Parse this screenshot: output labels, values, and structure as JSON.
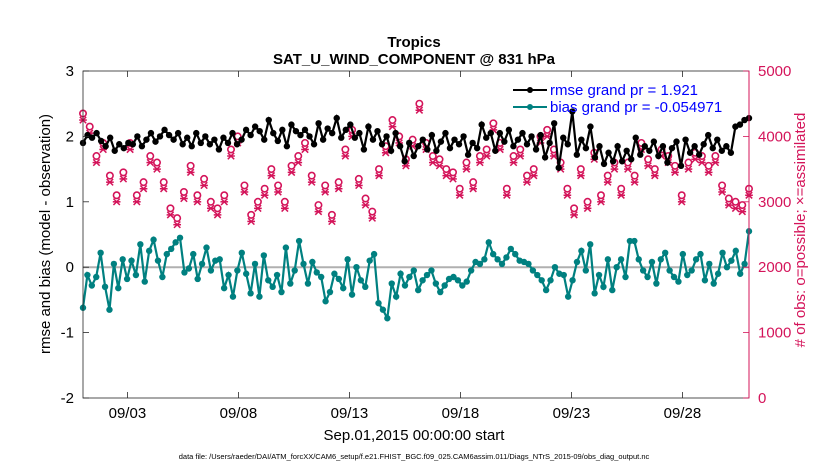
{
  "chart_data": {
    "type": "line",
    "title": "Tropics",
    "subtitle": "SAT_U_WIND_COMPONENT @ 831 hPa",
    "xlabel": "Sep.01,2015 00:00:00 start",
    "ylabel_left": "rmse and bias (model - observation)",
    "ylabel_right": "# of obs: o=possible; ×=assimilated",
    "xlim": [
      1.0,
      31.0
    ],
    "ylim_left": [
      -2,
      3
    ],
    "ylim_right": [
      0,
      5000
    ],
    "x_ticks": [
      3,
      8,
      13,
      18,
      23,
      28
    ],
    "x_tick_labels": [
      "09/03",
      "09/08",
      "09/13",
      "09/18",
      "09/23",
      "09/28"
    ],
    "y_left_ticks": [
      -2,
      -1,
      0,
      1,
      2,
      3
    ],
    "y_left_tick_labels": [
      "-2",
      "-1",
      "0",
      "1",
      "2",
      "3"
    ],
    "y_right_ticks": [
      0,
      1000,
      2000,
      3000,
      4000,
      5000
    ],
    "y_right_tick_labels": [
      "0",
      "1000",
      "2000",
      "3000",
      "4000",
      "5000"
    ],
    "footnote": "data file: /Users/raeder/DAI/ATM_forcXX/CAM6_setup/f.e21.FHIST_BGC.f09_025.CAM6assim.011/Diags_NTrS_2015-09/obs_diag_output.nc",
    "legend": [
      {
        "label": "rmse grand pr = 1.921",
        "color": "#000000"
      },
      {
        "label": "bias grand pr = -0.054971",
        "color": "#008080"
      }
    ],
    "series": [
      {
        "name": "rmse",
        "axis": "left",
        "color": "#000000",
        "values": [
          1.9,
          2.02,
          1.98,
          2.05,
          1.93,
          1.85,
          1.98,
          1.78,
          1.88,
          1.82,
          1.9,
          1.88,
          2.0,
          1.85,
          1.95,
          2.05,
          1.92,
          2.0,
          2.1,
          2.02,
          1.95,
          2.05,
          1.88,
          1.98,
          1.85,
          2.05,
          1.9,
          2.0,
          1.88,
          1.95,
          1.8,
          1.98,
          1.9,
          2.05,
          1.88,
          1.95,
          2.1,
          2.02,
          2.15,
          2.08,
          1.95,
          2.25,
          2.05,
          1.93,
          2.1,
          1.85,
          2.18,
          2.08,
          2.02,
          2.1,
          2.0,
          1.88,
          2.2,
          1.95,
          2.12,
          2.05,
          2.28,
          1.98,
          2.1,
          2.18,
          1.98,
          2.05,
          1.8,
          2.15,
          1.95,
          2.08,
          1.88,
          2.0,
          1.78,
          2.05,
          1.85,
          1.62,
          1.9,
          1.7,
          1.85,
          1.95,
          1.8,
          2.02,
          1.78,
          1.92,
          2.05,
          1.82,
          1.95,
          1.88,
          2.0,
          1.72,
          1.9,
          1.82,
          2.18,
          1.98,
          2.05,
          1.78,
          2.05,
          1.92,
          2.1,
          1.85,
          1.95,
          2.05,
          1.88,
          2.0,
          1.8,
          2.02,
          1.68,
          1.9,
          2.2,
          1.52,
          1.98,
          1.88,
          2.38,
          1.72,
          1.95,
          1.82,
          2.15,
          1.68,
          1.85,
          1.58,
          1.75,
          1.62,
          1.85,
          1.62,
          1.78,
          1.65,
          1.98,
          1.72,
          1.85,
          1.78,
          1.92,
          1.7,
          1.85,
          1.6,
          1.82,
          1.92,
          1.55,
          1.95,
          1.75,
          1.85,
          1.72,
          1.88,
          2.02,
          1.82,
          1.95,
          1.78,
          1.85,
          1.75,
          2.15,
          2.18,
          2.25,
          2.28
        ]
      },
      {
        "name": "bias",
        "axis": "left",
        "color": "#008080",
        "values": [
          -0.62,
          -0.12,
          -0.28,
          -0.15,
          0.22,
          -0.3,
          -0.65,
          0.05,
          -0.32,
          0.12,
          -0.18,
          0.1,
          -0.12,
          0.35,
          -0.22,
          0.25,
          0.42,
          0.1,
          -0.15,
          0.2,
          0.28,
          0.38,
          0.45,
          -0.08,
          -0.02,
          0.2,
          -0.18,
          0.05,
          0.3,
          -0.05,
          0.1,
          0.12,
          -0.32,
          -0.12,
          -0.45,
          -0.05,
          0.22,
          -0.1,
          -0.4,
          0.05,
          -0.45,
          0.18,
          -0.2,
          -0.3,
          -0.12,
          -0.38,
          0.3,
          -0.25,
          -0.05,
          0.4,
          0.05,
          -0.25,
          0.08,
          -0.08,
          -0.15,
          -0.52,
          -0.38,
          -0.1,
          -0.18,
          -0.32,
          0.12,
          -0.42,
          0.0,
          -0.2,
          -0.3,
          0.1,
          0.2,
          -0.55,
          -0.65,
          -0.78,
          -0.25,
          -0.45,
          -0.1,
          -0.28,
          -0.15,
          -0.05,
          -0.35,
          -0.2,
          -0.12,
          -0.05,
          -0.25,
          -0.38,
          -0.28,
          -0.18,
          -0.15,
          -0.2,
          -0.28,
          -0.22,
          -0.05,
          0.08,
          0.05,
          0.12,
          0.38,
          0.2,
          0.12,
          0.05,
          0.15,
          0.28,
          0.2,
          0.1,
          0.08,
          0.05,
          -0.05,
          -0.12,
          -0.2,
          -0.35,
          -0.2,
          0.0,
          -0.1,
          -0.12,
          -0.45,
          -0.2,
          0.08,
          0.25,
          -0.05,
          0.35,
          -0.4,
          -0.12,
          -0.3,
          0.12,
          -0.35,
          0.0,
          0.12,
          -0.15,
          0.4,
          0.4,
          0.12,
          -0.05,
          -0.15,
          0.08,
          -0.25,
          0.12,
          0.22,
          -0.05,
          -0.15,
          -0.22,
          0.2,
          -0.12,
          -0.05,
          0.12,
          0.2,
          -0.2,
          0.05,
          -0.25,
          -0.1,
          0.22,
          0.0,
          0.1,
          0.25,
          -0.1,
          0.05,
          0.55
        ]
      },
      {
        "name": "possible",
        "axis": "right",
        "color": "#d4145a",
        "values": [
          4350,
          4150,
          3700,
          3900,
          3400,
          3100,
          3450,
          3900,
          3100,
          3300,
          3700,
          3600,
          3300,
          2900,
          2750,
          3150,
          3550,
          3100,
          3350,
          3000,
          2900,
          3100,
          3800,
          4000,
          3250,
          2800,
          3000,
          3200,
          3500,
          3250,
          3000,
          3550,
          3700,
          3900,
          3400,
          2950,
          3250,
          2800,
          3300,
          3800,
          4100,
          3350,
          3050,
          2850,
          3500,
          3850,
          4250,
          4000,
          3650,
          3950,
          4500,
          3900,
          3700,
          3650,
          3500,
          3450,
          3200,
          3600,
          3300,
          3700,
          3800,
          4200,
          3900,
          3200,
          3700,
          3800,
          3400,
          3500,
          4000,
          4100,
          3800,
          3600,
          3200,
          2900,
          3500,
          3000,
          3750,
          3100,
          3400,
          3600,
          3200,
          3600,
          3400,
          3900,
          3650,
          3500,
          3800,
          3700,
          3550,
          3100,
          3600,
          3750,
          3700,
          3550,
          3700,
          3250,
          3050,
          3000,
          2950,
          3200
        ]
      },
      {
        "name": "assimilated",
        "axis": "right",
        "color": "#d4145a",
        "values": [
          4250,
          4050,
          3600,
          3800,
          3300,
          3000,
          3350,
          3800,
          3000,
          3200,
          3600,
          3500,
          3200,
          2800,
          2650,
          3050,
          3450,
          3000,
          3250,
          2900,
          2800,
          3000,
          3700,
          3900,
          3150,
          2700,
          2900,
          3100,
          3400,
          3150,
          2900,
          3450,
          3600,
          3800,
          3300,
          2850,
          3150,
          2700,
          3200,
          3700,
          4000,
          3250,
          2950,
          2750,
          3400,
          3750,
          4150,
          3900,
          3550,
          3850,
          4400,
          3800,
          3600,
          3550,
          3400,
          3350,
          3100,
          3500,
          3200,
          3600,
          3700,
          4100,
          3800,
          3100,
          3600,
          3700,
          3300,
          3400,
          3900,
          4000,
          3700,
          3500,
          3100,
          2800,
          3400,
          2900,
          3650,
          3000,
          3300,
          3500,
          3100,
          3500,
          3300,
          3800,
          3550,
          3400,
          3700,
          3600,
          3450,
          3000,
          3500,
          3650,
          3600,
          3450,
          3600,
          3150,
          2950,
          2900,
          2850,
          3100
        ]
      }
    ]
  }
}
